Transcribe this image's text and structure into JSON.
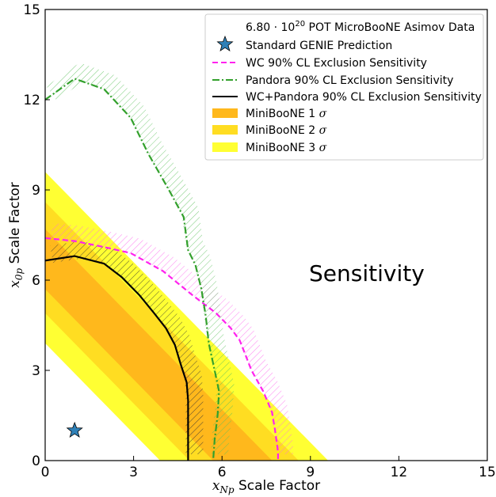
{
  "chart_data": {
    "type": "line",
    "xlabel_var": "x",
    "xlabel_sub": "Np",
    "xlabel_text": " Scale Factor",
    "ylabel_var": "x",
    "ylabel_sub": "0p",
    "ylabel_text": " Scale Factor",
    "xlim": [
      0,
      15
    ],
    "ylim": [
      0,
      15
    ],
    "xticks": [
      "0",
      "3",
      "6",
      "9",
      "12",
      "15"
    ],
    "yticks": [
      "0",
      "3",
      "6",
      "9",
      "12",
      "15"
    ],
    "grid": false,
    "legend_position": "top-right",
    "annotation": "Sensitivity",
    "legend": {
      "data_prefix": "6.80 · 10",
      "data_exp": "20",
      "data_suffix": " POT MicroBooNE Asimov Data",
      "genie": "Standard GENIE Prediction",
      "wc": "WC 90% CL Exclusion Sensitivity",
      "pandora": "Pandora 90% CL Exclusion Sensitivity",
      "combined": "WC+Pandora 90% CL Exclusion Sensitivity",
      "mb1": "MiniBooNE 1 ",
      "mb2": "MiniBooNE 2 ",
      "mb3": "MiniBooNE 3 ",
      "sigma": "σ"
    },
    "genie_point": {
      "x": 1,
      "y": 1
    },
    "bands": [
      {
        "name": "MiniBooNE 3 σ",
        "color": "#ffff33",
        "lower": 3.9,
        "upper": 9.6
      },
      {
        "name": "MiniBooNE 2 σ",
        "color": "#ffdd22",
        "lower": 4.9,
        "upper": 8.6
      },
      {
        "name": "MiniBooNE 1 σ",
        "color": "#ffb81c",
        "lower": 5.7,
        "upper": 7.7
      }
    ],
    "series": [
      {
        "key": "wc",
        "color": "#ff22ee",
        "style": "dashed",
        "points": [
          [
            0,
            7.4
          ],
          [
            1,
            7.3
          ],
          [
            2,
            7.1
          ],
          [
            2.9,
            6.9
          ],
          [
            4,
            6.3
          ],
          [
            5,
            5.5
          ],
          [
            5.8,
            4.9
          ],
          [
            6.3,
            4.4
          ],
          [
            6.6,
            4.0
          ],
          [
            6.8,
            3.5
          ],
          [
            7.0,
            3.0
          ],
          [
            7.4,
            2.3
          ],
          [
            7.7,
            1.6
          ],
          [
            7.8,
            1.0
          ],
          [
            7.9,
            0.3
          ],
          [
            7.9,
            0.0
          ]
        ]
      },
      {
        "key": "pandora",
        "color": "#33a02c",
        "style": "dashdot",
        "points": [
          [
            0,
            12.0
          ],
          [
            1,
            12.7
          ],
          [
            2,
            12.35
          ],
          [
            2.9,
            11.4
          ],
          [
            3.5,
            10.2
          ],
          [
            4.2,
            9.0
          ],
          [
            4.7,
            8.1
          ],
          [
            4.85,
            7.0
          ],
          [
            5.1,
            6.5
          ],
          [
            5.3,
            5.7
          ],
          [
            5.45,
            4.8
          ],
          [
            5.55,
            3.9
          ],
          [
            5.75,
            3.0
          ],
          [
            5.9,
            2.3
          ],
          [
            5.85,
            1.5
          ],
          [
            5.75,
            0.7
          ],
          [
            5.7,
            0.0
          ]
        ]
      },
      {
        "key": "combined",
        "color": "#000000",
        "style": "solid",
        "points": [
          [
            0,
            6.65
          ],
          [
            1,
            6.8
          ],
          [
            2,
            6.55
          ],
          [
            2.6,
            6.1
          ],
          [
            3.2,
            5.5
          ],
          [
            3.7,
            4.9
          ],
          [
            4.1,
            4.4
          ],
          [
            4.4,
            3.85
          ],
          [
            4.6,
            3.2
          ],
          [
            4.8,
            2.6
          ],
          [
            4.85,
            2.0
          ],
          [
            4.85,
            1.3
          ],
          [
            4.85,
            0.6
          ],
          [
            4.85,
            0.0
          ]
        ]
      }
    ],
    "colors": {
      "genie_star": "#2f80b7",
      "hatch_pink": "#ff55ee",
      "hatch_green": "#5bc05b",
      "hatch_black": "#222222"
    }
  }
}
